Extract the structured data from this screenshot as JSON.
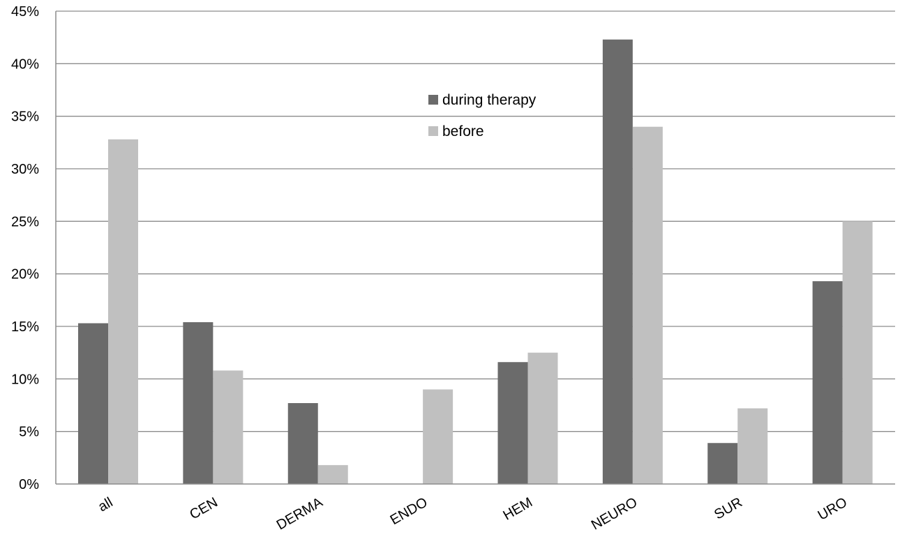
{
  "chart_data": {
    "type": "bar",
    "title": "",
    "xlabel": "",
    "ylabel": "",
    "categories": [
      "all",
      "CEN",
      "DERMA",
      "ENDO",
      "HEM",
      "NEURO",
      "SUR",
      "URO"
    ],
    "series": [
      {
        "name": "during therapy",
        "color": "#6b6b6b",
        "values": [
          15.3,
          15.4,
          7.7,
          0,
          11.6,
          42.3,
          3.9,
          19.3
        ]
      },
      {
        "name": "before",
        "color": "#c0c0c0",
        "values": [
          32.8,
          10.8,
          1.8,
          9.0,
          12.5,
          34.0,
          7.2,
          25.0
        ]
      }
    ],
    "ylim": [
      0,
      45
    ],
    "yticks": [
      0,
      5,
      10,
      15,
      20,
      25,
      30,
      35,
      40,
      45
    ],
    "ytick_labels": [
      "0%",
      "5%",
      "10%",
      "15%",
      "20%",
      "25%",
      "30%",
      "35%",
      "40%",
      "45%"
    ],
    "grid": true,
    "legend_position": "top-center"
  }
}
